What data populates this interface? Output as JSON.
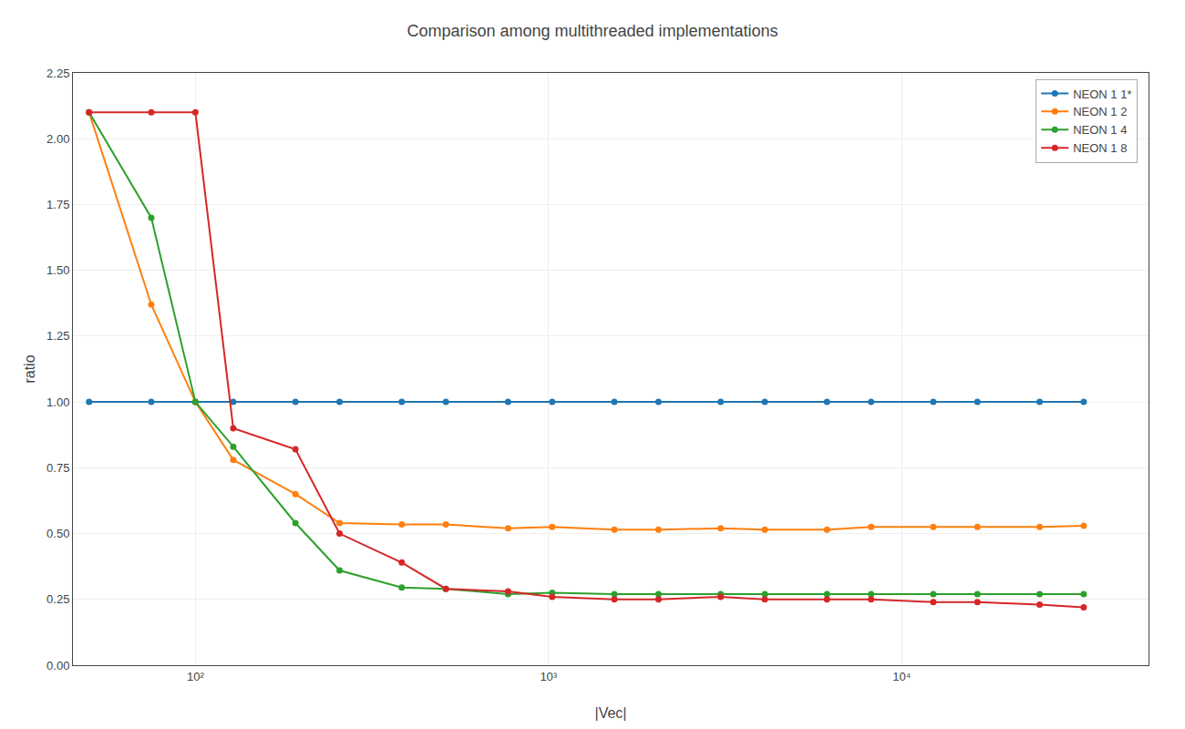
{
  "chart_data": {
    "type": "line",
    "title": "Comparison among multithreaded implementations",
    "x_label": "|Vec|",
    "y_label": "ratio",
    "x": [
      50,
      75,
      100,
      128,
      192,
      256,
      384,
      512,
      768,
      1024,
      1536,
      2048,
      3072,
      4096,
      6144,
      8192,
      12288,
      16384,
      24576,
      32768
    ],
    "series": [
      {
        "name": "NEON 1 1*",
        "color": "#1f77b4",
        "values": [
          1.0,
          1.0,
          1.0,
          1.0,
          1.0,
          1.0,
          1.0,
          1.0,
          1.0,
          1.0,
          1.0,
          1.0,
          1.0,
          1.0,
          1.0,
          1.0,
          1.0,
          1.0,
          1.0,
          1.0
        ]
      },
      {
        "name": "NEON 1 2",
        "color": "#ff7f0e",
        "values": [
          2.1,
          1.37,
          1.0,
          0.78,
          0.65,
          0.54,
          0.535,
          0.535,
          0.52,
          0.525,
          0.515,
          0.515,
          0.52,
          0.515,
          0.515,
          0.525,
          0.525,
          0.525,
          0.525,
          0.53
        ]
      },
      {
        "name": "NEON 1 4",
        "color": "#2ca02c",
        "values": [
          2.1,
          1.7,
          1.0,
          0.83,
          0.54,
          0.36,
          0.295,
          0.29,
          0.27,
          0.275,
          0.27,
          0.27,
          0.27,
          0.27,
          0.27,
          0.27,
          0.27,
          0.27,
          0.27,
          0.27
        ]
      },
      {
        "name": "NEON 1 8",
        "color": "#d62728",
        "values": [
          2.1,
          2.1,
          2.1,
          0.9,
          0.82,
          0.5,
          0.39,
          0.29,
          0.28,
          0.26,
          0.25,
          0.25,
          0.26,
          0.25,
          0.25,
          0.25,
          0.24,
          0.24,
          0.23,
          0.22
        ]
      }
    ],
    "log": "x",
    "xlim": [
      45,
      50000
    ],
    "xticks": [
      {
        "value": 100,
        "label": "10²"
      },
      {
        "value": 1000,
        "label": "10³"
      },
      {
        "value": 10000,
        "label": "10⁴"
      }
    ],
    "ylim": [
      0,
      2.25
    ],
    "yticks": [
      {
        "value": 0,
        "label": "0.00"
      },
      0.25,
      {
        "value": 0.5,
        "label": "0.50"
      },
      0.75,
      {
        "value": 1,
        "label": "1.00"
      },
      1.25,
      {
        "value": 1.5,
        "label": "1.50"
      },
      1.75,
      {
        "value": 2,
        "label": "2.00"
      },
      2.25
    ],
    "grid": true,
    "legend": "upper right",
    "marker": "circle",
    "line_style": "solid"
  }
}
